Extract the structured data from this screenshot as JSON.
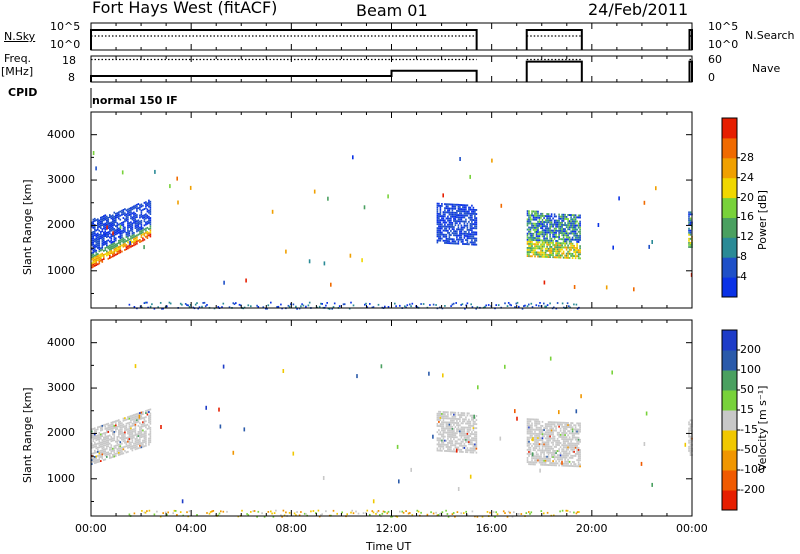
{
  "header": {
    "station": "Fort Hays West (fitACF)",
    "beam": "Beam 01",
    "date": "24/Feb/2011"
  },
  "left_labels": {
    "nsky": "N.Sky",
    "freq": "Freq.",
    "freq_unit": "[MHz]",
    "cpid": "CPID",
    "nsky_ticks": [
      "10^5",
      "10^0"
    ],
    "freq_ticks": [
      "18",
      "8"
    ]
  },
  "right_labels": {
    "nsearch": "N.Search",
    "nave": "Nave",
    "nsearch_ticks": [
      "10^5",
      "10^0"
    ],
    "nave_ticks": [
      "60",
      "0"
    ]
  },
  "cpid_text": "normal 150 IF",
  "colors": {
    "power": [
      "#0a32e6",
      "#1e50c8",
      "#2a8a96",
      "#4aa060",
      "#78d23a",
      "#f0d700",
      "#f0a000",
      "#f06a00",
      "#e61e00"
    ],
    "velocity": [
      "#e61e00",
      "#f05a00",
      "#f09600",
      "#f0c800",
      "#c8c8c8",
      "#78d23a",
      "#4aa060",
      "#2a5aaa",
      "#1e3cc8"
    ],
    "grey": "#c8c8c8"
  },
  "chart_data": [
    {
      "type": "line",
      "panel": "noise_sky_search",
      "ylabel": "N.Sky",
      "y2label": "N.Search",
      "series": [
        {
          "name": "N.Sky",
          "style": "solid",
          "segments": [
            [
              0.0,
              15.4
            ],
            [
              17.4,
              19.6
            ],
            [
              23.9,
              24.0
            ]
          ]
        },
        {
          "name": "N.Search",
          "style": "dotted",
          "segments": [
            [
              0.0,
              15.4
            ],
            [
              17.4,
              19.6
            ],
            [
              23.9,
              24.0
            ]
          ]
        }
      ]
    },
    {
      "type": "line",
      "panel": "frequency_nave",
      "ylabel": "Freq. [MHz]",
      "yticks": [
        8,
        18
      ],
      "y2label": "Nave",
      "y2ticks": [
        0,
        60
      ],
      "series": [
        {
          "name": "Freq.",
          "style": "solid",
          "steps": [
            [
              0.0,
              12.0,
              10.5
            ],
            [
              12.0,
              15.4,
              12.7
            ],
            [
              17.4,
              19.6,
              16.5
            ],
            [
              23.9,
              24.0,
              16.5
            ]
          ]
        },
        {
          "name": "Nave",
          "style": "dotted",
          "steps": [
            [
              0.0,
              15.4,
              52
            ],
            [
              17.4,
              19.6,
              52
            ],
            [
              23.9,
              24.0,
              52
            ]
          ]
        }
      ]
    },
    {
      "type": "heatmap",
      "panel": "power",
      "xlabel": "",
      "ylabel": "Slant Range [km]",
      "xlim": [
        0,
        24
      ],
      "ylim": [
        180,
        4500
      ],
      "yticks": [
        1000,
        2000,
        3000,
        4000
      ],
      "colorbar_label": "Power [dB]",
      "colorbar_ticks": [
        "4",
        "8",
        "12",
        "16",
        "20",
        "24",
        "28"
      ],
      "regions": [
        {
          "t0": 0.0,
          "t1": 2.4,
          "r_lo_start": 1050,
          "r_lo_end": 1750,
          "r_hi_start": 2100,
          "r_hi_end": 2550,
          "level": "high-bottom"
        },
        {
          "t0": 13.8,
          "t1": 15.4,
          "r_lo_start": 1600,
          "r_lo_end": 1550,
          "r_hi_start": 2500,
          "r_hi_end": 2400,
          "level": "low"
        },
        {
          "t0": 17.4,
          "t1": 19.5,
          "r_lo_start": 1300,
          "r_lo_end": 1250,
          "r_hi_start": 2300,
          "r_hi_end": 2200,
          "level": "mixed"
        },
        {
          "t0": 23.85,
          "t1": 24.0,
          "r_lo_start": 1500,
          "r_lo_end": 1500,
          "r_hi_start": 2300,
          "r_hi_end": 2300,
          "level": "mixed"
        }
      ],
      "ground_scatter": {
        "t0": 1.5,
        "t1": 19.5,
        "range": [
          180,
          320
        ]
      }
    },
    {
      "type": "heatmap",
      "panel": "velocity",
      "xlabel": "Time UT",
      "ylabel": "Slant Range [km]",
      "xlim": [
        0,
        24
      ],
      "ylim": [
        180,
        4500
      ],
      "xticks": [
        "00:00",
        "04:00",
        "08:00",
        "12:00",
        "16:00",
        "20:00",
        "00:00"
      ],
      "yticks": [
        1000,
        2000,
        3000,
        4000
      ],
      "colorbar_label": "Velocity [m s⁻¹]",
      "colorbar_ticks": [
        "-200",
        "-100",
        "-50",
        "-15",
        "15",
        "50",
        "100",
        "200"
      ],
      "regions": [
        {
          "t0": 0.0,
          "t1": 2.4,
          "r_lo_start": 1300,
          "r_lo_end": 1750,
          "r_hi_start": 2100,
          "r_hi_end": 2550,
          "level": "grey"
        },
        {
          "t0": 13.8,
          "t1": 15.4,
          "r_lo_start": 1600,
          "r_lo_end": 1550,
          "r_hi_start": 2500,
          "r_hi_end": 2400,
          "level": "grey"
        },
        {
          "t0": 17.4,
          "t1": 19.5,
          "r_lo_start": 1300,
          "r_lo_end": 1250,
          "r_hi_start": 2300,
          "r_hi_end": 2200,
          "level": "grey"
        },
        {
          "t0": 23.85,
          "t1": 24.0,
          "r_lo_start": 1500,
          "r_lo_end": 1500,
          "r_hi_start": 2300,
          "r_hi_end": 2300,
          "level": "grey"
        }
      ],
      "ground_scatter": {
        "t0": 1.5,
        "t1": 19.5,
        "range": [
          180,
          320
        ]
      }
    }
  ]
}
